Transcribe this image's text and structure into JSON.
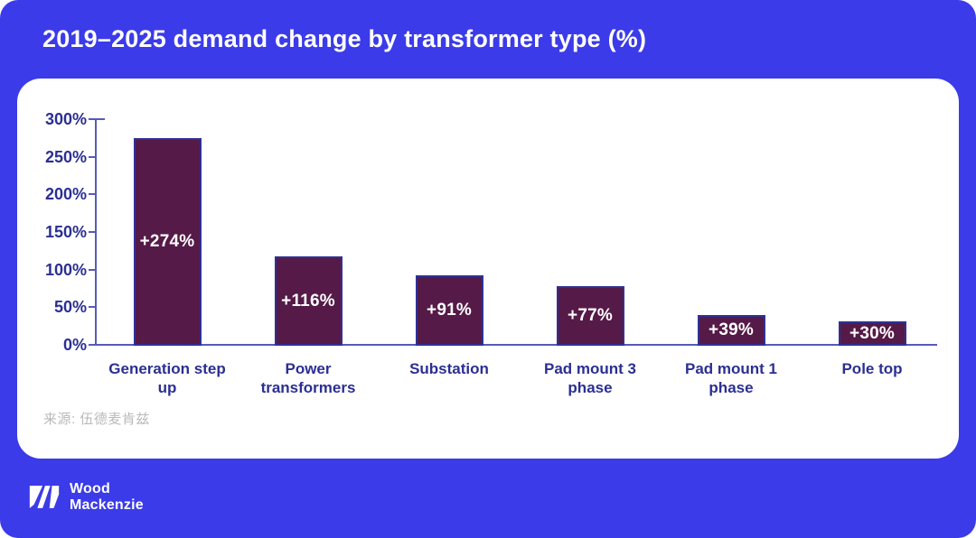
{
  "source_note": "来源: 伍德麦肯兹",
  "logo": {
    "mark": "wood-mackenzie-w-mark",
    "line1": "Wood",
    "line2": "Mackenzie"
  },
  "colors": {
    "background": "#3b3be9",
    "card": "#ffffff",
    "title_text": "#ffffff",
    "bar_fill": "#551a47",
    "bar_border": "#2f3193",
    "axis_text": "#2b2f92",
    "axis_line": "#585ab8",
    "value_label": "#ffffff",
    "source_text": "#b9b9b9"
  },
  "chart_data": {
    "type": "bar",
    "title": "2019–2025 demand change by transformer type (%)",
    "categories": [
      "Generation step up",
      "Power transformers",
      "Substation",
      "Pad mount 3 phase",
      "Pad mount 1 phase",
      "Pole top"
    ],
    "category_lines": [
      [
        "Generation step",
        "up"
      ],
      [
        "Power",
        "transformers"
      ],
      [
        "Substation"
      ],
      [
        "Pad mount 3",
        "phase"
      ],
      [
        "Pad mount 1",
        "phase"
      ],
      [
        "Pole top"
      ]
    ],
    "values": [
      274,
      116,
      91,
      77,
      39,
      30
    ],
    "value_labels": [
      "+274%",
      "+116%",
      "+91%",
      "+77%",
      "+39%",
      "+30%"
    ],
    "xlabel": "",
    "ylabel": "",
    "ylim": [
      0,
      300
    ],
    "ytick_step": 50,
    "ytick_labels": [
      "0%",
      "50%",
      "100%",
      "150%",
      "200%",
      "250%",
      "300%"
    ],
    "grid": false,
    "legend": null,
    "value_label_position": "inside-center"
  }
}
